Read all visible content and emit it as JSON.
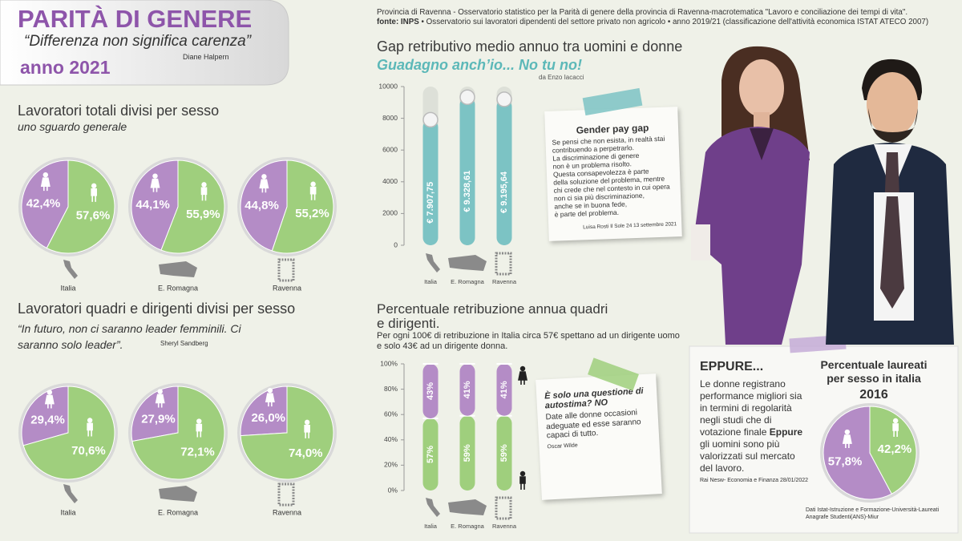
{
  "header": {
    "title": "PARITÀ DI GENERE",
    "quote": "“Differenza non significa carenza”",
    "quote_author": "Diane Halpern",
    "year": "anno 2021"
  },
  "source": {
    "line1": "Provincia di Ravenna - Osservatorio statistico per la Parità di genere della provincia di Ravenna-macrotematica \"Lavoro e conciliazione dei tempi di vita\".",
    "label": "fonte: INPS",
    "line2": "• Osservatorio sui lavoratori dipendenti del settore privato non agricolo • anno 2019/21 (classificazione dell'attività economica ISTAT ATECO 2007)"
  },
  "chart_data": [
    {
      "type": "pie",
      "title": "Lavoratori totali divisi per sesso",
      "subtitle": "uno sguardo generale",
      "categories": [
        "Italia",
        "E. Romagna",
        "Ravenna"
      ],
      "series": [
        {
          "color": "#b48cc6",
          "values": [
            42.4,
            44.1,
            44.8
          ],
          "value_labels": [
            "42,4%",
            "44,1%",
            "44,8%"
          ]
        },
        {
          "color": "#9fcf7d",
          "values": [
            57.6,
            55.9,
            55.2
          ],
          "value_labels": [
            "57,6%",
            "55,9%",
            "55,2%"
          ]
        }
      ]
    },
    {
      "type": "pie",
      "title": "Lavoratori quadri e dirigenti divisi per sesso",
      "subtitle": "“In futuro, non ci saranno leader femminili. Ci saranno solo leader”.",
      "subtitle_author": "Sheryl Sandberg",
      "categories": [
        "Italia",
        "E. Romagna",
        "Ravenna"
      ],
      "series": [
        {
          "color": "#b48cc6",
          "values": [
            29.4,
            27.9,
            26.0
          ],
          "value_labels": [
            "29,4%",
            "27,9%",
            "26,0%"
          ]
        },
        {
          "color": "#9fcf7d",
          "values": [
            70.6,
            72.1,
            74.0
          ],
          "value_labels": [
            "70,6%",
            "72,1%",
            "74,0%"
          ]
        }
      ]
    },
    {
      "type": "bar",
      "title": "Gap retributivo medio annuo tra uomini e donne",
      "subtitle": "Guadagno anch’io... No tu no!",
      "subtitle_author": "da Enzo Iacacci",
      "categories": [
        "Italia",
        "E. Romagna",
        "Ravenna"
      ],
      "values": [
        7907.75,
        9328.61,
        9195.64
      ],
      "value_labels": [
        "€ 7.907,75",
        "€ 9.328,61",
        "€ 9.195,64"
      ],
      "color": "#7cc3c4",
      "ylim": [
        0,
        10000
      ],
      "yticks": [
        0,
        2000,
        4000,
        6000,
        8000,
        10000
      ]
    },
    {
      "type": "stacked_bar",
      "title": "Percentuale retribuzione annua quadri e dirigenti.",
      "subtitle": "Per ogni 100€ di retribuzione in Italia circa 57€ spettano ad un dirigente uomo e solo 43€ ad un dirigente donna.",
      "categories": [
        "Italia",
        "E. Romagna",
        "Ravenna"
      ],
      "series": [
        {
          "color": "#b48cc6",
          "values": [
            43,
            41,
            41
          ],
          "value_labels": [
            "43%",
            "41%",
            "41%"
          ]
        },
        {
          "color": "#9fcf7d",
          "values": [
            57,
            59,
            59
          ],
          "value_labels": [
            "57%",
            "59%",
            "59%"
          ]
        }
      ],
      "ylim": [
        0,
        100
      ],
      "yticks": [
        {
          "value": 0,
          "label": "0%"
        },
        {
          "value": 20,
          "label": "20%"
        },
        {
          "value": 40,
          "label": "40%"
        },
        {
          "value": 60,
          "label": "60%"
        },
        {
          "value": 80,
          "label": "80%"
        },
        {
          "value": 100,
          "label": "100%"
        }
      ]
    },
    {
      "type": "pie",
      "title": "Percentuale laureati per sesso in italia",
      "subtitle": "2016",
      "series": [
        {
          "color": "#b48cc6",
          "values": [
            57.8
          ],
          "value_labels": [
            "57,8%"
          ]
        },
        {
          "color": "#9fcf7d",
          "values": [
            42.2
          ],
          "value_labels": [
            "42,2%"
          ]
        }
      ],
      "source": "Dati Istat-Istruzione e Formazione-Università-Laureati Anagrafe Studenti(ANS)-Miur"
    }
  ],
  "notes": {
    "pay_gap": {
      "title": "Gender pay gap",
      "text": [
        "Se pensi che non esista, in realtà stai",
        "contribuendo a perpetrarlo.",
        "La discriminazione di genere",
        "non è un problema risolto.",
        "Questa consapevolezza è parte",
        "della soluzione del problema, mentre",
        "chi crede che nel contesto in cui opera",
        "non ci sia più discriminazione,",
        "anche se in buona fede,",
        "è parte del problema."
      ],
      "source": "Luisa Rosti Il Sole 24 13 settembre 2021"
    },
    "autostima": {
      "title": "È solo una questione di autostima? NO",
      "text": "Date alle donne occasioni adeguate ed esse saranno capaci di tutto.",
      "author": "Oscar Wilde"
    },
    "eppure": {
      "title": "EPPURE...",
      "text1": "Le donne registrano performance migliori sia in termini di regolarità negli studi che di votazione finale",
      "bold": "Eppure",
      "text2": "gli uomini sono più valorizzati sul mercato del lavoro.",
      "source": "Rai Nesw- Economia e Finanza 28/01/2022"
    }
  }
}
